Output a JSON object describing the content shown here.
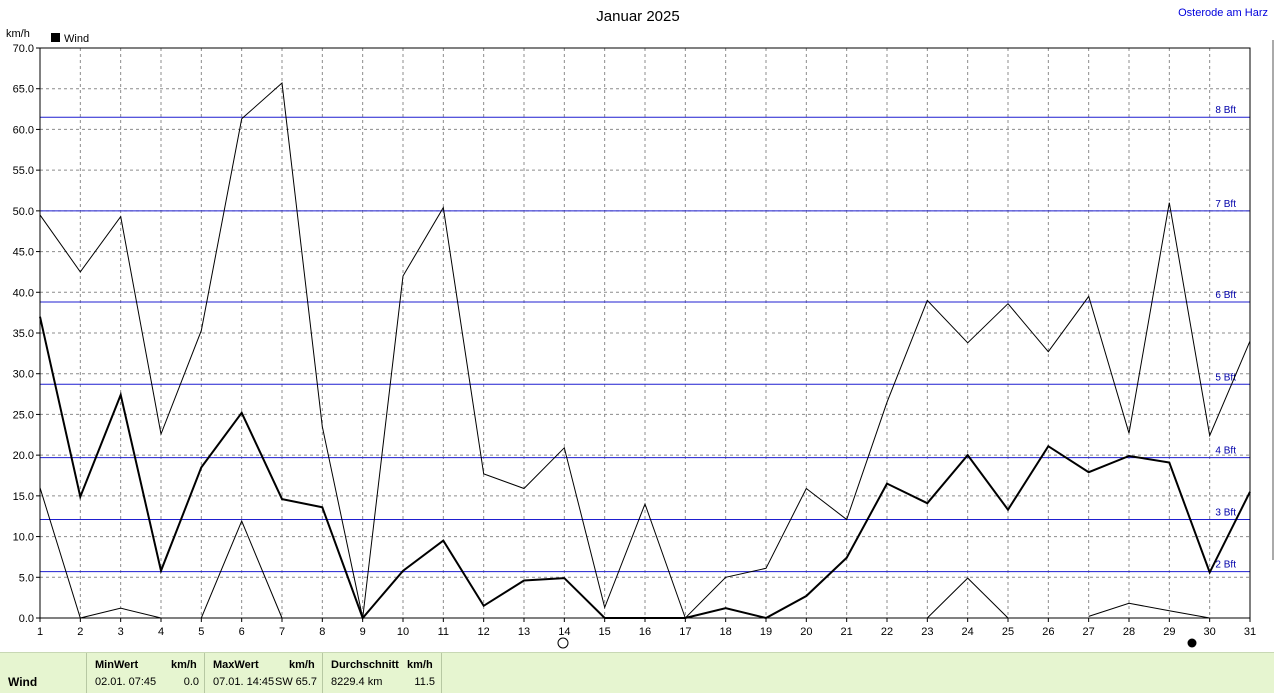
{
  "header": {
    "title": "Januar 2025",
    "station": "Osterode am Harz",
    "unit": "km/h",
    "legend_label": "Wind"
  },
  "colors": {
    "grid": "#8c8c8c",
    "beaufort": "#1f1fd0",
    "beaufort_label": "#0000aa",
    "station": "#0000dd",
    "series": "#000000",
    "stats_bg": "#e6f5d0"
  },
  "chart_data": {
    "type": "line",
    "title": "Januar 2025",
    "ylabel": "km/h",
    "xlim": [
      1,
      31
    ],
    "ylim": [
      0,
      70
    ],
    "x_ticks": [
      1,
      2,
      3,
      4,
      5,
      6,
      7,
      8,
      9,
      10,
      11,
      12,
      13,
      14,
      15,
      16,
      17,
      18,
      19,
      20,
      21,
      22,
      23,
      24,
      25,
      26,
      27,
      28,
      29,
      30,
      31
    ],
    "y_ticks": [
      "0.0",
      "5.0",
      "10.0",
      "15.0",
      "20.0",
      "25.0",
      "30.0",
      "35.0",
      "40.0",
      "45.0",
      "50.0",
      "55.0",
      "60.0",
      "65.0",
      "70.0"
    ],
    "grid": true,
    "legend": "top-left",
    "beaufort_lines": [
      {
        "label": "2 Bft",
        "value": 5.7
      },
      {
        "label": "3 Bft",
        "value": 12.1
      },
      {
        "label": "4 Bft",
        "value": 19.7
      },
      {
        "label": "5 Bft",
        "value": 28.7
      },
      {
        "label": "6 Bft",
        "value": 38.8
      },
      {
        "label": "7 Bft",
        "value": 50.0
      },
      {
        "label": "8 Bft",
        "value": 61.5
      }
    ],
    "series": [
      {
        "name": "Wind",
        "role": "mean",
        "x": [
          1,
          2,
          3,
          4,
          5,
          6,
          7,
          8,
          9,
          10,
          11,
          12,
          13,
          14,
          15,
          16,
          17,
          18,
          19,
          20,
          21,
          22,
          23,
          24,
          25,
          26,
          27,
          28,
          29,
          30,
          31
        ],
        "values": [
          37.0,
          14.9,
          27.4,
          5.8,
          18.5,
          25.2,
          14.6,
          13.6,
          0.0,
          5.8,
          9.5,
          1.5,
          4.6,
          4.9,
          0.0,
          0.0,
          0.0,
          1.2,
          0.0,
          2.7,
          7.4,
          16.5,
          14.1,
          20.0,
          13.3,
          21.1,
          17.9,
          19.9,
          19.1,
          5.6,
          15.5
        ]
      },
      {
        "role": "max",
        "x": [
          1,
          2,
          3,
          4,
          5,
          6,
          7,
          8,
          9,
          10,
          11,
          12,
          13,
          14,
          15,
          16,
          17,
          18,
          19,
          20,
          21,
          22,
          23,
          24,
          25,
          26,
          27,
          28,
          29,
          30,
          31
        ],
        "values": [
          49.5,
          42.5,
          49.3,
          22.6,
          35.3,
          61.3,
          65.7,
          23.5,
          0.0,
          42.0,
          50.4,
          17.7,
          15.9,
          20.9,
          1.3,
          14.0,
          0.0,
          5.0,
          6.1,
          15.9,
          12.1,
          26.5,
          39.0,
          33.8,
          38.6,
          32.7,
          39.5,
          22.7,
          51.0,
          22.4,
          34.0
        ]
      },
      {
        "role": "min",
        "x": [
          1,
          2,
          3,
          4,
          5,
          6,
          7,
          8,
          9,
          10,
          11,
          12,
          13,
          14,
          15,
          16,
          17,
          18,
          19,
          20,
          21,
          22,
          23,
          24,
          25,
          26,
          27,
          28,
          29,
          30,
          31
        ],
        "values": [
          16.0,
          0.0,
          1.2,
          0.0,
          0.0,
          11.9,
          0.0,
          null,
          null,
          null,
          null,
          null,
          null,
          null,
          null,
          null,
          null,
          null,
          null,
          null,
          null,
          null,
          0.0,
          4.9,
          0.0,
          null,
          0.2,
          1.8,
          0.9,
          0.0,
          null
        ]
      }
    ]
  },
  "stats": {
    "row_label": "Wind",
    "min": {
      "header": "MinWert",
      "unit": "km/h",
      "datetime": "02.01.  07:45",
      "value": "0.0"
    },
    "max": {
      "header": "MaxWert",
      "unit": "km/h",
      "datetime": "07.01.  14:45",
      "direction": "SW",
      "value": "65.7"
    },
    "avg": {
      "header": "Durchschnitt",
      "unit": "km/h",
      "distance": "8229.4 km",
      "value": "11.5"
    }
  }
}
